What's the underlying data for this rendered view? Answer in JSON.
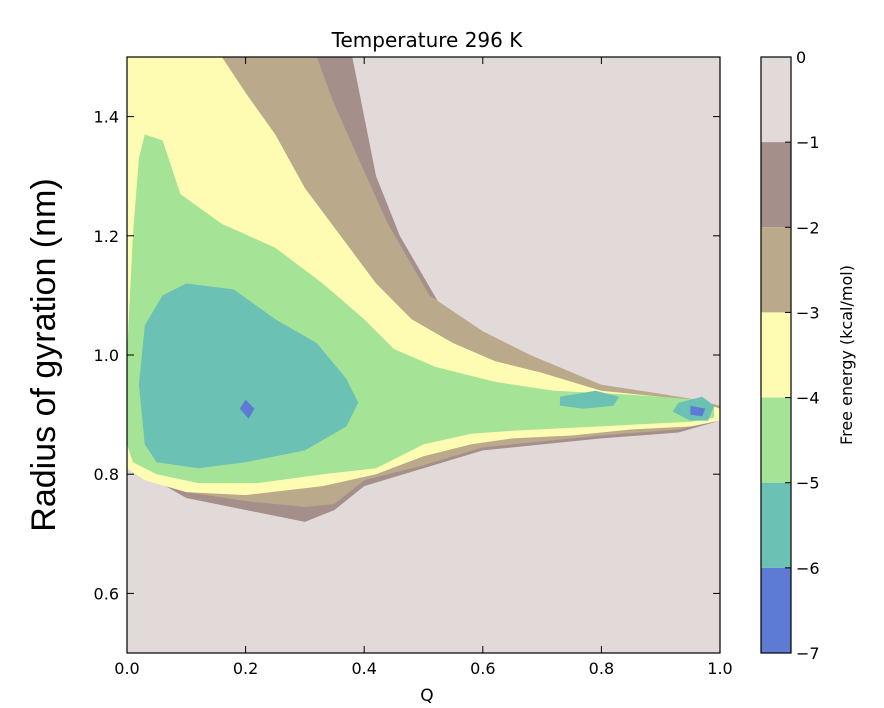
{
  "chart_data": {
    "type": "heatmap",
    "subtype": "filled-contour",
    "title": "Temperature 296 K",
    "xlabel": "Q",
    "ylabel": "Radius of gyration (nm)",
    "xlim": [
      0.0,
      1.0
    ],
    "ylim": [
      0.5,
      1.5
    ],
    "x_ticks": [
      0.0,
      0.2,
      0.4,
      0.6,
      0.8,
      1.0
    ],
    "x_tick_labels": [
      "0.0",
      "0.2",
      "0.4",
      "0.6",
      "0.8",
      "1.0"
    ],
    "y_ticks": [
      0.6,
      0.8,
      1.0,
      1.2,
      1.4
    ],
    "y_tick_labels": [
      "0.6",
      "0.8",
      "1.0",
      "1.2",
      "1.4"
    ],
    "colorbar": {
      "label": "Free energy (kcal/mol)",
      "range": [
        -7,
        0
      ],
      "ticks": [
        0,
        -1,
        -2,
        -3,
        -4,
        -5,
        -6,
        -7
      ],
      "tick_labels": [
        "0",
        "−1",
        "−2",
        "−3",
        "−4",
        "−5",
        "−6",
        "−7"
      ],
      "levels": [
        {
          "range": [
            -1,
            0
          ],
          "color": "#e2d9d9"
        },
        {
          "range": [
            -2,
            -1
          ],
          "color": "#a58f8b"
        },
        {
          "range": [
            -3,
            -2
          ],
          "color": "#baa98a"
        },
        {
          "range": [
            -4,
            -3
          ],
          "color": "#fdfcb2"
        },
        {
          "range": [
            -5,
            -4
          ],
          "color": "#a5e396"
        },
        {
          "range": [
            -6,
            -5
          ],
          "color": "#6cc1b5"
        },
        {
          "range": [
            -7,
            -6
          ],
          "color": "#5d7bd3"
        }
      ]
    },
    "regions": [
      {
        "level": -2,
        "polygon": [
          [
            0.12,
            1.5
          ],
          [
            0.38,
            1.5
          ],
          [
            0.4,
            1.4
          ],
          [
            0.42,
            1.3
          ],
          [
            0.46,
            1.2
          ],
          [
            0.53,
            1.08
          ],
          [
            0.62,
            1.02
          ],
          [
            0.7,
            0.98
          ],
          [
            0.8,
            0.94
          ],
          [
            0.9,
            0.93
          ],
          [
            0.96,
            0.92
          ],
          [
            1.0,
            0.91
          ],
          [
            1.0,
            0.89
          ],
          [
            0.93,
            0.87
          ],
          [
            0.8,
            0.86
          ],
          [
            0.7,
            0.85
          ],
          [
            0.6,
            0.84
          ],
          [
            0.5,
            0.81
          ],
          [
            0.4,
            0.78
          ],
          [
            0.35,
            0.74
          ],
          [
            0.3,
            0.72
          ],
          [
            0.2,
            0.74
          ],
          [
            0.1,
            0.76
          ],
          [
            0.03,
            0.8
          ],
          [
            0.0,
            0.82
          ],
          [
            0.0,
            1.5
          ]
        ]
      },
      {
        "level": -3,
        "polygon": [
          [
            0.13,
            1.5
          ],
          [
            0.32,
            1.5
          ],
          [
            0.35,
            1.42
          ],
          [
            0.39,
            1.33
          ],
          [
            0.44,
            1.22
          ],
          [
            0.51,
            1.1
          ],
          [
            0.6,
            1.04
          ],
          [
            0.68,
            1.0
          ],
          [
            0.8,
            0.95
          ],
          [
            0.9,
            0.935
          ],
          [
            0.96,
            0.925
          ],
          [
            1.0,
            0.915
          ],
          [
            1.0,
            0.89
          ],
          [
            0.93,
            0.875
          ],
          [
            0.8,
            0.865
          ],
          [
            0.7,
            0.855
          ],
          [
            0.6,
            0.845
          ],
          [
            0.5,
            0.815
          ],
          [
            0.4,
            0.79
          ],
          [
            0.35,
            0.75
          ],
          [
            0.3,
            0.745
          ],
          [
            0.2,
            0.755
          ],
          [
            0.1,
            0.77
          ],
          [
            0.03,
            0.8
          ],
          [
            0.0,
            0.83
          ],
          [
            0.0,
            1.5
          ]
        ]
      },
      {
        "level": -4,
        "polygon": [
          [
            0.0,
            1.5
          ],
          [
            0.16,
            1.5
          ],
          [
            0.2,
            1.44
          ],
          [
            0.25,
            1.37
          ],
          [
            0.3,
            1.28
          ],
          [
            0.36,
            1.2
          ],
          [
            0.42,
            1.12
          ],
          [
            0.48,
            1.06
          ],
          [
            0.55,
            1.02
          ],
          [
            0.62,
            0.99
          ],
          [
            0.7,
            0.97
          ],
          [
            0.8,
            0.94
          ],
          [
            0.9,
            0.93
          ],
          [
            0.97,
            0.92
          ],
          [
            1.0,
            0.91
          ],
          [
            1.0,
            0.89
          ],
          [
            0.95,
            0.88
          ],
          [
            0.85,
            0.875
          ],
          [
            0.75,
            0.865
          ],
          [
            0.65,
            0.86
          ],
          [
            0.58,
            0.85
          ],
          [
            0.5,
            0.83
          ],
          [
            0.42,
            0.8
          ],
          [
            0.33,
            0.78
          ],
          [
            0.2,
            0.765
          ],
          [
            0.1,
            0.77
          ],
          [
            0.03,
            0.79
          ],
          [
            0.0,
            0.81
          ]
        ]
      },
      {
        "level": -5,
        "polygon": [
          [
            0.03,
            1.37
          ],
          [
            0.06,
            1.36
          ],
          [
            0.09,
            1.27
          ],
          [
            0.16,
            1.22
          ],
          [
            0.25,
            1.18
          ],
          [
            0.33,
            1.12
          ],
          [
            0.4,
            1.06
          ],
          [
            0.45,
            1.01
          ],
          [
            0.52,
            0.98
          ],
          [
            0.62,
            0.955
          ],
          [
            0.72,
            0.94
          ],
          [
            0.82,
            0.935
          ],
          [
            0.9,
            0.93
          ],
          [
            0.96,
            0.925
          ],
          [
            0.99,
            0.915
          ],
          [
            0.99,
            0.895
          ],
          [
            0.95,
            0.888
          ],
          [
            0.85,
            0.883
          ],
          [
            0.75,
            0.878
          ],
          [
            0.65,
            0.873
          ],
          [
            0.58,
            0.868
          ],
          [
            0.5,
            0.85
          ],
          [
            0.42,
            0.81
          ],
          [
            0.33,
            0.8
          ],
          [
            0.22,
            0.785
          ],
          [
            0.12,
            0.785
          ],
          [
            0.05,
            0.8
          ],
          [
            0.01,
            0.82
          ],
          [
            0.0,
            0.85
          ],
          [
            0.0,
            1.0
          ],
          [
            0.01,
            1.2
          ],
          [
            0.02,
            1.33
          ]
        ]
      },
      {
        "level": -6,
        "polygon": [
          [
            0.03,
            1.05
          ],
          [
            0.06,
            1.1
          ],
          [
            0.1,
            1.12
          ],
          [
            0.18,
            1.11
          ],
          [
            0.25,
            1.06
          ],
          [
            0.32,
            1.02
          ],
          [
            0.37,
            0.96
          ],
          [
            0.39,
            0.92
          ],
          [
            0.37,
            0.88
          ],
          [
            0.3,
            0.84
          ],
          [
            0.2,
            0.82
          ],
          [
            0.12,
            0.81
          ],
          [
            0.05,
            0.82
          ],
          [
            0.03,
            0.85
          ],
          [
            0.02,
            0.95
          ]
        ]
      },
      {
        "level": -6,
        "polygon": [
          [
            0.73,
            0.93
          ],
          [
            0.79,
            0.94
          ],
          [
            0.83,
            0.93
          ],
          [
            0.82,
            0.915
          ],
          [
            0.77,
            0.91
          ],
          [
            0.73,
            0.915
          ]
        ]
      },
      {
        "level": -6,
        "polygon": [
          [
            0.93,
            0.92
          ],
          [
            0.97,
            0.93
          ],
          [
            0.99,
            0.915
          ],
          [
            0.98,
            0.89
          ],
          [
            0.95,
            0.89
          ],
          [
            0.92,
            0.905
          ]
        ]
      },
      {
        "level": -7,
        "polygon": [
          [
            0.2,
            0.925
          ],
          [
            0.215,
            0.91
          ],
          [
            0.205,
            0.893
          ],
          [
            0.19,
            0.91
          ]
        ]
      },
      {
        "level": -7,
        "polygon": [
          [
            0.95,
            0.915
          ],
          [
            0.975,
            0.91
          ],
          [
            0.97,
            0.897
          ],
          [
            0.95,
            0.9
          ]
        ]
      }
    ],
    "grid": false
  }
}
